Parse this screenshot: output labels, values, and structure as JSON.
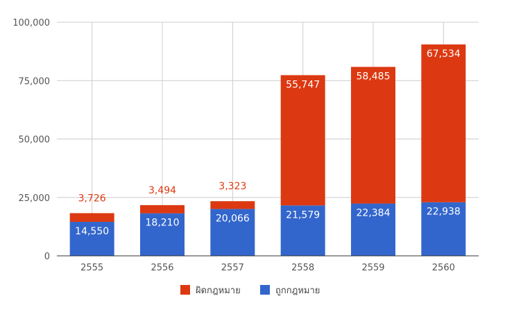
{
  "chart_data": {
    "type": "bar",
    "stacked": true,
    "categories": [
      "2555",
      "2556",
      "2557",
      "2558",
      "2559",
      "2560"
    ],
    "series": [
      {
        "name": "ถูกกฎหมาย",
        "color": "#3366cc",
        "values": [
          14550,
          18210,
          20066,
          21579,
          22384,
          22938
        ]
      },
      {
        "name": "ผิดกฎหมาย",
        "color": "#dc3912",
        "values": [
          3726,
          3494,
          3323,
          55747,
          58485,
          67534
        ]
      }
    ],
    "value_labels": [
      [
        "14,550",
        "18,210",
        "20,066",
        "21,579",
        "22,384",
        "22,938"
      ],
      [
        "3,726",
        "3,494",
        "3,323",
        "55,747",
        "58,485",
        "67,534"
      ]
    ],
    "ylim": [
      0,
      100000
    ],
    "yticks": [
      0,
      25000,
      50000,
      75000,
      100000
    ],
    "ytick_labels": [
      "0",
      "25,000",
      "50,000",
      "75,000",
      "100,000"
    ],
    "legend_order": [
      1,
      0
    ],
    "legend_position": "bottom",
    "grid": true
  }
}
